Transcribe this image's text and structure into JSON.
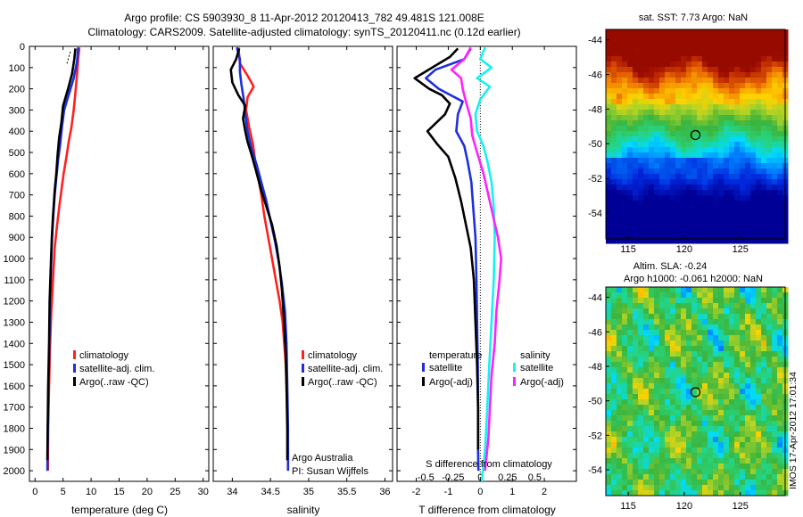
{
  "header": {
    "title_line1": "Argo profile: CS 5903930_8 11-Apr-2012 20120413_782 49.481S 121.008E",
    "title_line2": "Climatology: CARS2009. Satellite-adjusted climatology: synTS_20120411.nc (0.12d earlier)"
  },
  "side_stamp": "IMOS 17-Apr-2012 17:01:34",
  "colors": {
    "climatology": "#ff2020",
    "satellite": "#1e2fdc",
    "argo": "#000000",
    "sat_sal": "#19f0f0",
    "argo_sal": "#ff22ff"
  },
  "chart_data": [
    {
      "id": "temperature",
      "type": "line",
      "xlabel": "temperature (deg C)",
      "ylim": [
        2050,
        0
      ],
      "xlim": [
        -1,
        31
      ],
      "xticks": [
        0,
        5,
        10,
        15,
        20,
        25,
        30
      ],
      "xticklabels": [
        "0",
        "5",
        "10",
        "15",
        "20",
        "25",
        "30"
      ],
      "yticks": [
        0,
        100,
        200,
        300,
        400,
        500,
        600,
        700,
        800,
        900,
        1000,
        1100,
        1200,
        1300,
        1400,
        1500,
        1600,
        1700,
        1800,
        1900,
        2000
      ],
      "yticklabels": [
        "0",
        "100",
        "200",
        "300",
        "400",
        "500",
        "600",
        "700",
        "800",
        "900",
        "1000",
        "1100",
        "1200",
        "1300",
        "1400",
        "1500",
        "1600",
        "1700",
        "1800",
        "1900",
        "2000"
      ],
      "legend": [
        "climatology",
        "satellite-adj. clim.",
        "Argo(..raw -QC)"
      ],
      "series": [
        {
          "name": "climatology",
          "color": "#ff2020",
          "width": 2.6,
          "points": [
            [
              7.9,
              5
            ],
            [
              7.7,
              60
            ],
            [
              7.5,
              130
            ],
            [
              7.2,
              220
            ],
            [
              6.9,
              300
            ],
            [
              6.5,
              380
            ],
            [
              6.0,
              450
            ],
            [
              5.6,
              520
            ],
            [
              5.1,
              600
            ],
            [
              4.7,
              680
            ],
            [
              4.3,
              760
            ],
            [
              3.9,
              850
            ],
            [
              3.5,
              950
            ],
            [
              3.2,
              1100
            ],
            [
              2.9,
              1250
            ],
            [
              2.7,
              1400
            ],
            [
              2.5,
              1600
            ],
            [
              2.35,
              1800
            ],
            [
              2.3,
              2000
            ]
          ]
        },
        {
          "name": "satellite-adj. clim.",
          "color": "#1e2fdc",
          "width": 2.6,
          "points": [
            [
              7.7,
              5
            ],
            [
              7.5,
              70
            ],
            [
              6.9,
              150
            ],
            [
              6.1,
              220
            ],
            [
              5.2,
              300
            ],
            [
              4.8,
              380
            ],
            [
              4.5,
              460
            ],
            [
              4.1,
              540
            ],
            [
              3.8,
              620
            ],
            [
              3.5,
              700
            ],
            [
              3.25,
              800
            ],
            [
              3.05,
              900
            ],
            [
              2.9,
              1000
            ],
            [
              2.7,
              1200
            ],
            [
              2.55,
              1400
            ],
            [
              2.4,
              1600
            ],
            [
              2.3,
              1800
            ],
            [
              2.2,
              2000
            ]
          ]
        },
        {
          "name": "Argo(..raw -QC)",
          "color": "#000000",
          "width": 2.6,
          "points": [
            [
              7.2,
              10
            ],
            [
              7.0,
              60
            ],
            [
              6.6,
              130
            ],
            [
              5.9,
              200
            ],
            [
              5.0,
              280
            ],
            [
              4.7,
              360
            ],
            [
              4.3,
              430
            ],
            [
              4.0,
              520
            ],
            [
              3.8,
              600
            ],
            [
              3.5,
              680
            ],
            [
              3.2,
              800
            ],
            [
              3.0,
              900
            ],
            [
              2.85,
              1000
            ],
            [
              2.6,
              1200
            ],
            [
              2.5,
              1400
            ],
            [
              2.35,
              1600
            ],
            [
              2.25,
              1800
            ],
            [
              2.2,
              1950
            ]
          ]
        }
      ]
    },
    {
      "id": "salinity",
      "type": "line",
      "xlabel": "salinity",
      "ylim": [
        2050,
        0
      ],
      "xlim": [
        33.75,
        36.1
      ],
      "xticks": [
        34,
        34.5,
        35,
        35.5,
        36
      ],
      "xticklabels": [
        "34",
        "34.5",
        "35",
        "35.5",
        "36"
      ],
      "legend": [
        "climatology",
        "satellite-adj. clim.",
        "Argo(..raw -QC)"
      ],
      "annotations": [
        "Argo Australia",
        "PI: Susan Wijffels"
      ],
      "series": [
        {
          "name": "climatology",
          "color": "#ff2020",
          "width": 2.6,
          "points": [
            [
              34.08,
              5
            ],
            [
              34.1,
              80
            ],
            [
              34.22,
              150
            ],
            [
              34.28,
              190
            ],
            [
              34.2,
              240
            ],
            [
              34.18,
              300
            ],
            [
              34.22,
              380
            ],
            [
              34.27,
              460
            ],
            [
              34.3,
              540
            ],
            [
              34.34,
              620
            ],
            [
              34.38,
              700
            ],
            [
              34.42,
              800
            ],
            [
              34.47,
              900
            ],
            [
              34.52,
              1000
            ],
            [
              34.57,
              1100
            ],
            [
              34.62,
              1200
            ],
            [
              34.66,
              1300
            ],
            [
              34.7,
              1500
            ],
            [
              34.72,
              1700
            ],
            [
              34.73,
              1900
            ],
            [
              34.73,
              2000
            ]
          ]
        },
        {
          "name": "satellite-adj. clim.",
          "color": "#1e2fdc",
          "width": 2.6,
          "points": [
            [
              34.06,
              5
            ],
            [
              34.1,
              60
            ],
            [
              34.1,
              120
            ],
            [
              34.12,
              180
            ],
            [
              34.15,
              250
            ],
            [
              34.17,
              320
            ],
            [
              34.2,
              400
            ],
            [
              34.25,
              480
            ],
            [
              34.32,
              560
            ],
            [
              34.38,
              640
            ],
            [
              34.44,
              720
            ],
            [
              34.5,
              820
            ],
            [
              34.56,
              920
            ],
            [
              34.61,
              1020
            ],
            [
              34.65,
              1120
            ],
            [
              34.69,
              1250
            ],
            [
              34.71,
              1400
            ],
            [
              34.72,
              1600
            ],
            [
              34.73,
              1800
            ],
            [
              34.73,
              2000
            ]
          ]
        },
        {
          "name": "Argo(..raw -QC)",
          "color": "#000000",
          "width": 2.6,
          "points": [
            [
              34.09,
              10
            ],
            [
              34.05,
              60
            ],
            [
              33.98,
              110
            ],
            [
              34.0,
              170
            ],
            [
              34.08,
              230
            ],
            [
              34.17,
              280
            ],
            [
              34.14,
              340
            ],
            [
              34.17,
              400
            ],
            [
              34.2,
              450
            ],
            [
              34.26,
              520
            ],
            [
              34.32,
              600
            ],
            [
              34.38,
              680
            ],
            [
              34.45,
              760
            ],
            [
              34.52,
              840
            ],
            [
              34.58,
              940
            ],
            [
              34.62,
              1040
            ],
            [
              34.65,
              1150
            ],
            [
              34.68,
              1300
            ],
            [
              34.7,
              1450
            ],
            [
              34.71,
              1600
            ],
            [
              34.72,
              1800
            ],
            [
              34.72,
              1950
            ]
          ]
        }
      ]
    },
    {
      "id": "difference",
      "type": "line",
      "xlabel": "T difference from climatology",
      "top_label": "S difference from climatology",
      "ylim": [
        2050,
        0
      ],
      "xlim": [
        -2.6,
        3.0
      ],
      "xticks": [
        -2,
        -1,
        0,
        1,
        2
      ],
      "xticklabels": [
        "-2",
        "-1",
        "0",
        "1",
        "2"
      ],
      "top_ticks": [
        -0.5,
        -0.25,
        0,
        0.25,
        0.5
      ],
      "top_ticklabels": [
        "-0.5",
        "-0.25",
        "0",
        "0.25",
        "0.5"
      ],
      "legend_left_title": "temperature",
      "legend_right_title": "salinity",
      "legend_left": [
        "satellite",
        "Argo(-adj)"
      ],
      "legend_right": [
        "satellite",
        "Argo(-adj)"
      ],
      "series": [
        {
          "name": "T satellite",
          "color": "#1e2fdc",
          "width": 2.6,
          "points": [
            [
              -0.3,
              10
            ],
            [
              -0.5,
              60
            ],
            [
              -1.4,
              110
            ],
            [
              -1.7,
              150
            ],
            [
              -1.3,
              200
            ],
            [
              -0.55,
              260
            ],
            [
              -0.7,
              320
            ],
            [
              -0.75,
              400
            ],
            [
              -0.5,
              470
            ],
            [
              -0.4,
              540
            ],
            [
              -0.28,
              640
            ],
            [
              -0.22,
              760
            ],
            [
              -0.15,
              900
            ],
            [
              -0.12,
              1100
            ],
            [
              -0.1,
              1300
            ],
            [
              -0.08,
              1500
            ],
            [
              -0.07,
              1700
            ],
            [
              -0.07,
              1900
            ],
            [
              -0.06,
              2000
            ]
          ]
        },
        {
          "name": "T Argo(-adj)",
          "color": "#000000",
          "width": 2.6,
          "points": [
            [
              -0.7,
              10
            ],
            [
              -0.95,
              50
            ],
            [
              -1.5,
              100
            ],
            [
              -2.05,
              150
            ],
            [
              -1.6,
              200
            ],
            [
              -1.2,
              230
            ],
            [
              -0.95,
              270
            ],
            [
              -1.1,
              320
            ],
            [
              -1.65,
              400
            ],
            [
              -1.35,
              460
            ],
            [
              -1.0,
              520
            ],
            [
              -0.78,
              620
            ],
            [
              -0.6,
              730
            ],
            [
              -0.45,
              840
            ],
            [
              -0.3,
              950
            ],
            [
              -0.2,
              1100
            ],
            [
              -0.15,
              1300
            ],
            [
              -0.1,
              1500
            ],
            [
              -0.07,
              1700
            ],
            [
              -0.07,
              1900
            ]
          ]
        },
        {
          "name": "S satellite",
          "color": "#19f0f0",
          "width": 2.6,
          "points": [
            [
              0.15,
              5
            ],
            [
              0.0,
              60
            ],
            [
              0.35,
              100
            ],
            [
              -0.1,
              150
            ],
            [
              0.3,
              190
            ],
            [
              0.0,
              250
            ],
            [
              -0.15,
              320
            ],
            [
              -0.1,
              400
            ],
            [
              0.1,
              470
            ],
            [
              0.22,
              540
            ],
            [
              0.35,
              640
            ],
            [
              0.42,
              760
            ],
            [
              0.45,
              900
            ],
            [
              0.42,
              1100
            ],
            [
              0.35,
              1300
            ],
            [
              0.28,
              1500
            ],
            [
              0.22,
              1700
            ],
            [
              0.15,
              1900
            ],
            [
              0.05,
              2050
            ]
          ]
        },
        {
          "name": "S Argo(-adj)",
          "color": "#ff22ff",
          "width": 2.6,
          "points": [
            [
              -0.3,
              5
            ],
            [
              -0.5,
              60
            ],
            [
              -0.9,
              110
            ],
            [
              -0.6,
              150
            ],
            [
              -0.55,
              200
            ],
            [
              -0.45,
              260
            ],
            [
              -0.3,
              340
            ],
            [
              -0.25,
              420
            ],
            [
              -0.1,
              500
            ],
            [
              0.1,
              600
            ],
            [
              0.25,
              700
            ],
            [
              0.4,
              800
            ],
            [
              0.55,
              900
            ],
            [
              0.65,
              1000
            ],
            [
              0.6,
              1100
            ],
            [
              0.5,
              1250
            ],
            [
              0.45,
              1400
            ],
            [
              0.35,
              1550
            ],
            [
              0.3,
              1700
            ],
            [
              0.25,
              1850
            ],
            [
              0.15,
              2000
            ]
          ]
        }
      ]
    },
    {
      "id": "sst-map",
      "type": "heatmap",
      "title": "sat. SST: 7.73  Argo: NaN",
      "xlim": [
        113,
        129
      ],
      "ylim": [
        -55.5,
        -43.4
      ],
      "xticks": [
        115,
        120,
        125
      ],
      "xticklabels": [
        "115",
        "120",
        "125"
      ],
      "yticks": [
        -44,
        -46,
        -48,
        -50,
        -52,
        -54
      ],
      "yticklabels": [
        "-44",
        "-46",
        "-48",
        "-50",
        "-52",
        "-54"
      ],
      "marker": [
        121.0,
        -49.5
      ]
    },
    {
      "id": "sla-map",
      "type": "heatmap",
      "title_line1": "Altim. SLA: -0.24",
      "title_line2": "Argo h1000: -0.061  h2000: NaN",
      "xlim": [
        113,
        129
      ],
      "ylim": [
        -55.5,
        -43.4
      ],
      "xticks": [
        115,
        120,
        125
      ],
      "xticklabels": [
        "115",
        "120",
        "125"
      ],
      "yticks": [
        -44,
        -46,
        -48,
        -50,
        -52,
        -54
      ],
      "yticklabels": [
        "-44",
        "-46",
        "-48",
        "-50",
        "-52",
        "-54"
      ],
      "marker": [
        121.0,
        -49.5
      ]
    }
  ]
}
